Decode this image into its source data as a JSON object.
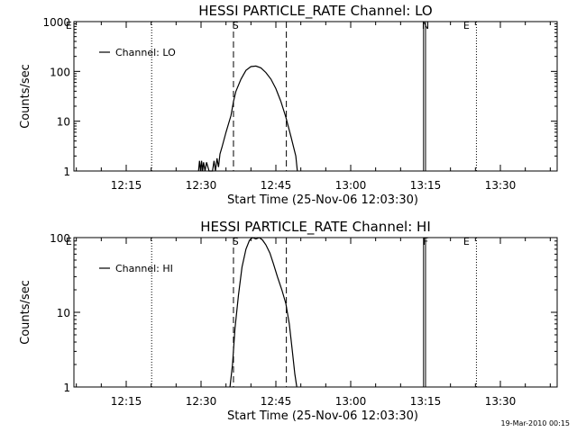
{
  "footer_timestamp": "19-Mar-2010 00:15",
  "chart_data": [
    {
      "type": "line",
      "title": "HESSI PARTICLE_RATE Channel: LO",
      "ylabel": "Counts/sec",
      "xlabel": "Start Time (25-Nov-06 12:03:30)",
      "xlim_min": [
        0,
        90
      ],
      "ylim": [
        1,
        1000
      ],
      "y_scale": "log",
      "x_ticks": [
        {
          "label": "12:15",
          "min": 15
        },
        {
          "label": "12:30",
          "min": 30
        },
        {
          "label": "12:45",
          "min": 45
        },
        {
          "label": "13:00",
          "min": 60
        },
        {
          "label": "13:15",
          "min": 75
        },
        {
          "label": "13:30",
          "min": 90
        }
      ],
      "y_ticks": [
        {
          "label": "1",
          "value": 1
        },
        {
          "label": "10",
          "value": 10
        },
        {
          "label": "100",
          "value": 100
        },
        {
          "label": "1000",
          "value": 1000
        }
      ],
      "legend": {
        "label": "Channel: LO",
        "placement": "top-left"
      },
      "dotted_lines_min": [
        20.1,
        85.2,
        101.5
      ],
      "dashed_lines_min": [
        36.5,
        47.1
      ],
      "annotations": [
        {
          "label": "E",
          "min": 3.5
        },
        {
          "label": "S",
          "min": 36.9
        },
        {
          "label": "N",
          "min": 75.0
        },
        {
          "label": "E",
          "min": 83.2
        }
      ],
      "spike_min": [
        74.6,
        75.0
      ],
      "series": [
        {
          "x_min": [
            29.5,
            29.7,
            29.9,
            30.1,
            30.3,
            30.5,
            30.8,
            31.1,
            31.6,
            32.0,
            32.3,
            32.6,
            32.9,
            33.2,
            33.5,
            33.8,
            34.2,
            35.0,
            36.0,
            36.5,
            37.0,
            38.0,
            39.0,
            40.0,
            41.0,
            42.0,
            43.0,
            44.0,
            45.0,
            46.0,
            47.0,
            48.0,
            49.0,
            49.3
          ],
          "y": [
            1.0,
            1.6,
            1.0,
            1.6,
            1.0,
            1.5,
            1.0,
            1.5,
            1.0,
            1.0,
            1.0,
            1.6,
            1.0,
            1.8,
            1.2,
            2.2,
            3.0,
            6.0,
            13,
            25,
            40,
            70,
            105,
            125,
            128,
            118,
            95,
            70,
            45,
            25,
            12,
            5,
            2,
            1.0
          ]
        }
      ]
    },
    {
      "type": "line",
      "title": "HESSI PARTICLE_RATE Channel: HI",
      "ylabel": "Counts/sec",
      "xlabel": "Start Time (25-Nov-06 12:03:30)",
      "xlim_min": [
        0,
        90
      ],
      "ylim": [
        1,
        100
      ],
      "y_scale": "log",
      "x_ticks": [
        {
          "label": "12:15",
          "min": 15
        },
        {
          "label": "12:30",
          "min": 30
        },
        {
          "label": "12:45",
          "min": 45
        },
        {
          "label": "13:00",
          "min": 60
        },
        {
          "label": "13:15",
          "min": 75
        },
        {
          "label": "13:30",
          "min": 90
        }
      ],
      "y_ticks": [
        {
          "label": "1",
          "value": 1
        },
        {
          "label": "10",
          "value": 10
        },
        {
          "label": "100",
          "value": 100
        }
      ],
      "legend": {
        "label": "Channel: HI",
        "placement": "top-left"
      },
      "dotted_lines_min": [
        20.1,
        85.2,
        101.5
      ],
      "dashed_lines_min": [
        36.5,
        47.1
      ],
      "annotations": [
        {
          "label": "E",
          "min": 3.5
        },
        {
          "label": "S",
          "min": 36.9
        },
        {
          "label": "F",
          "min": 75.0
        },
        {
          "label": "E",
          "min": 83.2
        }
      ],
      "spike_min": [
        74.6,
        75.0
      ],
      "series": [
        {
          "x_min": [
            35.8,
            36.3,
            36.8,
            37.5,
            38.2,
            39.0,
            39.7,
            40.3,
            41.0,
            41.7,
            42.3,
            43.0,
            43.8,
            44.5,
            45.3,
            46.2,
            47.0,
            47.7,
            48.3,
            48.8,
            49.2
          ],
          "y": [
            1.0,
            2.0,
            6.0,
            17,
            40,
            70,
            92,
            100,
            96,
            100,
            93,
            80,
            62,
            45,
            30,
            20,
            13,
            7,
            3,
            1.5,
            1.0
          ]
        }
      ]
    }
  ]
}
